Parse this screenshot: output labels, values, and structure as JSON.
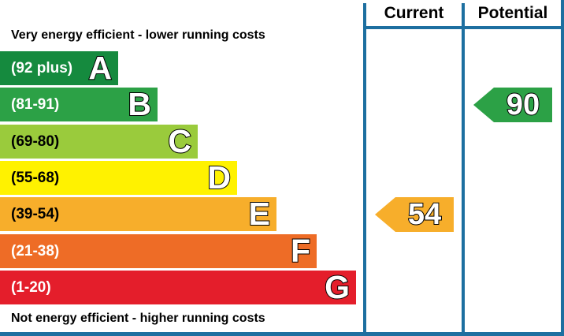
{
  "chart_data": {
    "type": "table",
    "captions": {
      "top": "Very energy efficient - lower running costs",
      "bottom": "Not energy efficient - higher running costs"
    },
    "bands": [
      {
        "letter": "A",
        "range": "(92 plus)",
        "color": "#158a3e"
      },
      {
        "letter": "B",
        "range": "(81-91)",
        "color": "#2ca146"
      },
      {
        "letter": "C",
        "range": "(69-80)",
        "color": "#9acb3c"
      },
      {
        "letter": "D",
        "range": "(55-68)",
        "color": "#fff200"
      },
      {
        "letter": "E",
        "range": "(39-54)",
        "color": "#f7ae2b"
      },
      {
        "letter": "F",
        "range": "(21-38)",
        "color": "#ee6c26"
      },
      {
        "letter": "G",
        "range": "(1-20)",
        "color": "#e41e2b"
      }
    ],
    "columns": [
      {
        "header": "Current",
        "value": 54,
        "band": "E",
        "color": "#f7ae2b"
      },
      {
        "header": "Potential",
        "value": 90,
        "band": "B",
        "color": "#2ca146"
      }
    ],
    "border_color": "#1d6fa0"
  }
}
